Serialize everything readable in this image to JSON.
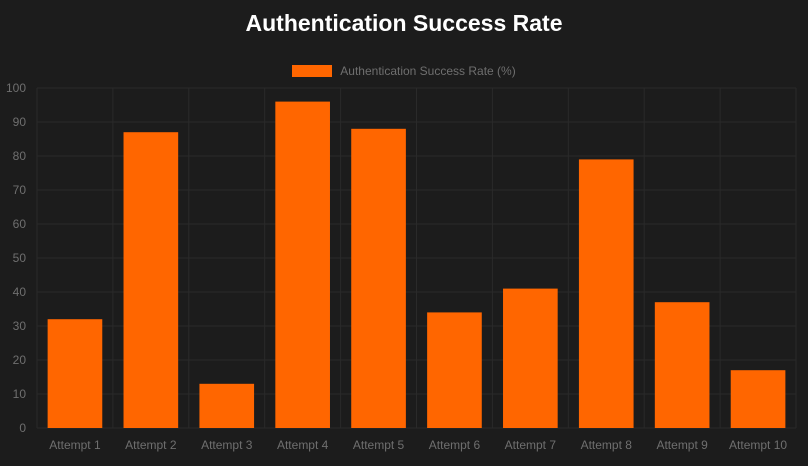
{
  "chart_data": {
    "type": "bar",
    "title": "Authentication Success Rate",
    "categories": [
      "Attempt 1",
      "Attempt 2",
      "Attempt 3",
      "Attempt 4",
      "Attempt 5",
      "Attempt 6",
      "Attempt 7",
      "Attempt 8",
      "Attempt 9",
      "Attempt 10"
    ],
    "series": [
      {
        "name": "Authentication Success Rate (%)",
        "values": [
          32,
          87,
          13,
          96,
          88,
          34,
          41,
          79,
          37,
          17
        ]
      }
    ],
    "xlabel": "",
    "ylabel": "",
    "ylim": [
      0,
      100
    ],
    "yticks": [
      0,
      10,
      20,
      30,
      40,
      50,
      60,
      70,
      80,
      90,
      100
    ],
    "grid": true,
    "legend_position": "top-center",
    "colors": {
      "background": "#1c1c1c",
      "bar": "#ff6600",
      "grid": "#2a2a2a",
      "tick_text": "#6f6f6f",
      "title": "#ffffff"
    }
  }
}
